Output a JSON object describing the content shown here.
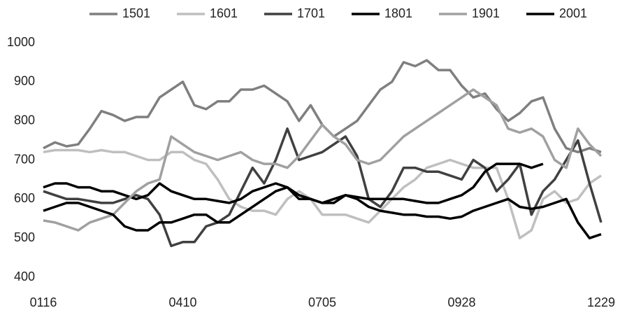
{
  "chart_data": {
    "type": "line",
    "categories": [
      "0116",
      null,
      null,
      null,
      null,
      null,
      null,
      null,
      null,
      null,
      null,
      null,
      "0410",
      null,
      null,
      null,
      null,
      null,
      null,
      null,
      null,
      null,
      null,
      null,
      "0705",
      null,
      null,
      null,
      null,
      null,
      null,
      null,
      null,
      null,
      null,
      null,
      "0928",
      null,
      null,
      null,
      null,
      null,
      null,
      null,
      null,
      null,
      null,
      null,
      "1229"
    ],
    "series": [
      {
        "name": "1501",
        "color": "#7f7f7f",
        "values": [
          730,
          745,
          735,
          740,
          780,
          825,
          815,
          800,
          810,
          810,
          860,
          880,
          900,
          840,
          830,
          850,
          850,
          880,
          880,
          890,
          870,
          850,
          800,
          840,
          790,
          760,
          780,
          800,
          840,
          880,
          900,
          950,
          940,
          955,
          930,
          930,
          890,
          860,
          870,
          830,
          800,
          820,
          850,
          860,
          780,
          730,
          720,
          730,
          720
        ]
      },
      {
        "name": "1601",
        "color": "#bfbfbf",
        "values": [
          720,
          725,
          725,
          725,
          720,
          725,
          720,
          720,
          710,
          700,
          700,
          720,
          720,
          700,
          690,
          650,
          600,
          580,
          570,
          570,
          560,
          600,
          620,
          600,
          560,
          560,
          560,
          550,
          540,
          570,
          600,
          630,
          650,
          680,
          690,
          700,
          690,
          680,
          680,
          680,
          600,
          500,
          520,
          600,
          620,
          590,
          600,
          640,
          660
        ]
      },
      {
        "name": "1701",
        "color": "#404040",
        "values": [
          620,
          610,
          600,
          600,
          595,
          590,
          590,
          600,
          610,
          600,
          560,
          480,
          490,
          490,
          530,
          540,
          560,
          620,
          680,
          640,
          700,
          780,
          700,
          710,
          720,
          740,
          760,
          710,
          600,
          580,
          620,
          680,
          680,
          670,
          670,
          660,
          650,
          700,
          680,
          620,
          650,
          690,
          560,
          620,
          650,
          700,
          750,
          640,
          540
        ]
      },
      {
        "name": "1801",
        "color": "#000000",
        "values": [
          630,
          640,
          640,
          630,
          630,
          620,
          620,
          610,
          600,
          610,
          640,
          620,
          610,
          600,
          600,
          595,
          590,
          600,
          620,
          630,
          640,
          630,
          600,
          600,
          590,
          590,
          610,
          600,
          580,
          570,
          565,
          560,
          560,
          555,
          555,
          550,
          555,
          570,
          580,
          590,
          600,
          580,
          575,
          580,
          590,
          600,
          540,
          500,
          510
        ]
      },
      {
        "name": "1901",
        "color": "#a0a0a0",
        "values": [
          545,
          540,
          530,
          520,
          540,
          550,
          560,
          590,
          620,
          640,
          650,
          760,
          740,
          720,
          710,
          700,
          710,
          720,
          700,
          690,
          690,
          680,
          710,
          750,
          790,
          760,
          740,
          700,
          690,
          700,
          730,
          760,
          780,
          800,
          820,
          840,
          860,
          880,
          860,
          840,
          780,
          770,
          780,
          760,
          700,
          680,
          780,
          740,
          710
        ]
      },
      {
        "name": "2001",
        "color": "#000000",
        "values": [
          570,
          580,
          590,
          590,
          580,
          570,
          560,
          530,
          520,
          520,
          540,
          540,
          550,
          560,
          560,
          540,
          540,
          560,
          580,
          600,
          620,
          630,
          610,
          600,
          590,
          600,
          610,
          605,
          600,
          600,
          600,
          600,
          595,
          590,
          590,
          600,
          610,
          630,
          670,
          690,
          690,
          690,
          680,
          690,
          null,
          null,
          null,
          null,
          null
        ]
      }
    ],
    "ylim": [
      400,
      1000
    ],
    "yticks": [
      400,
      500,
      600,
      700,
      800,
      900,
      1000
    ],
    "grid": false,
    "legend": "top"
  }
}
